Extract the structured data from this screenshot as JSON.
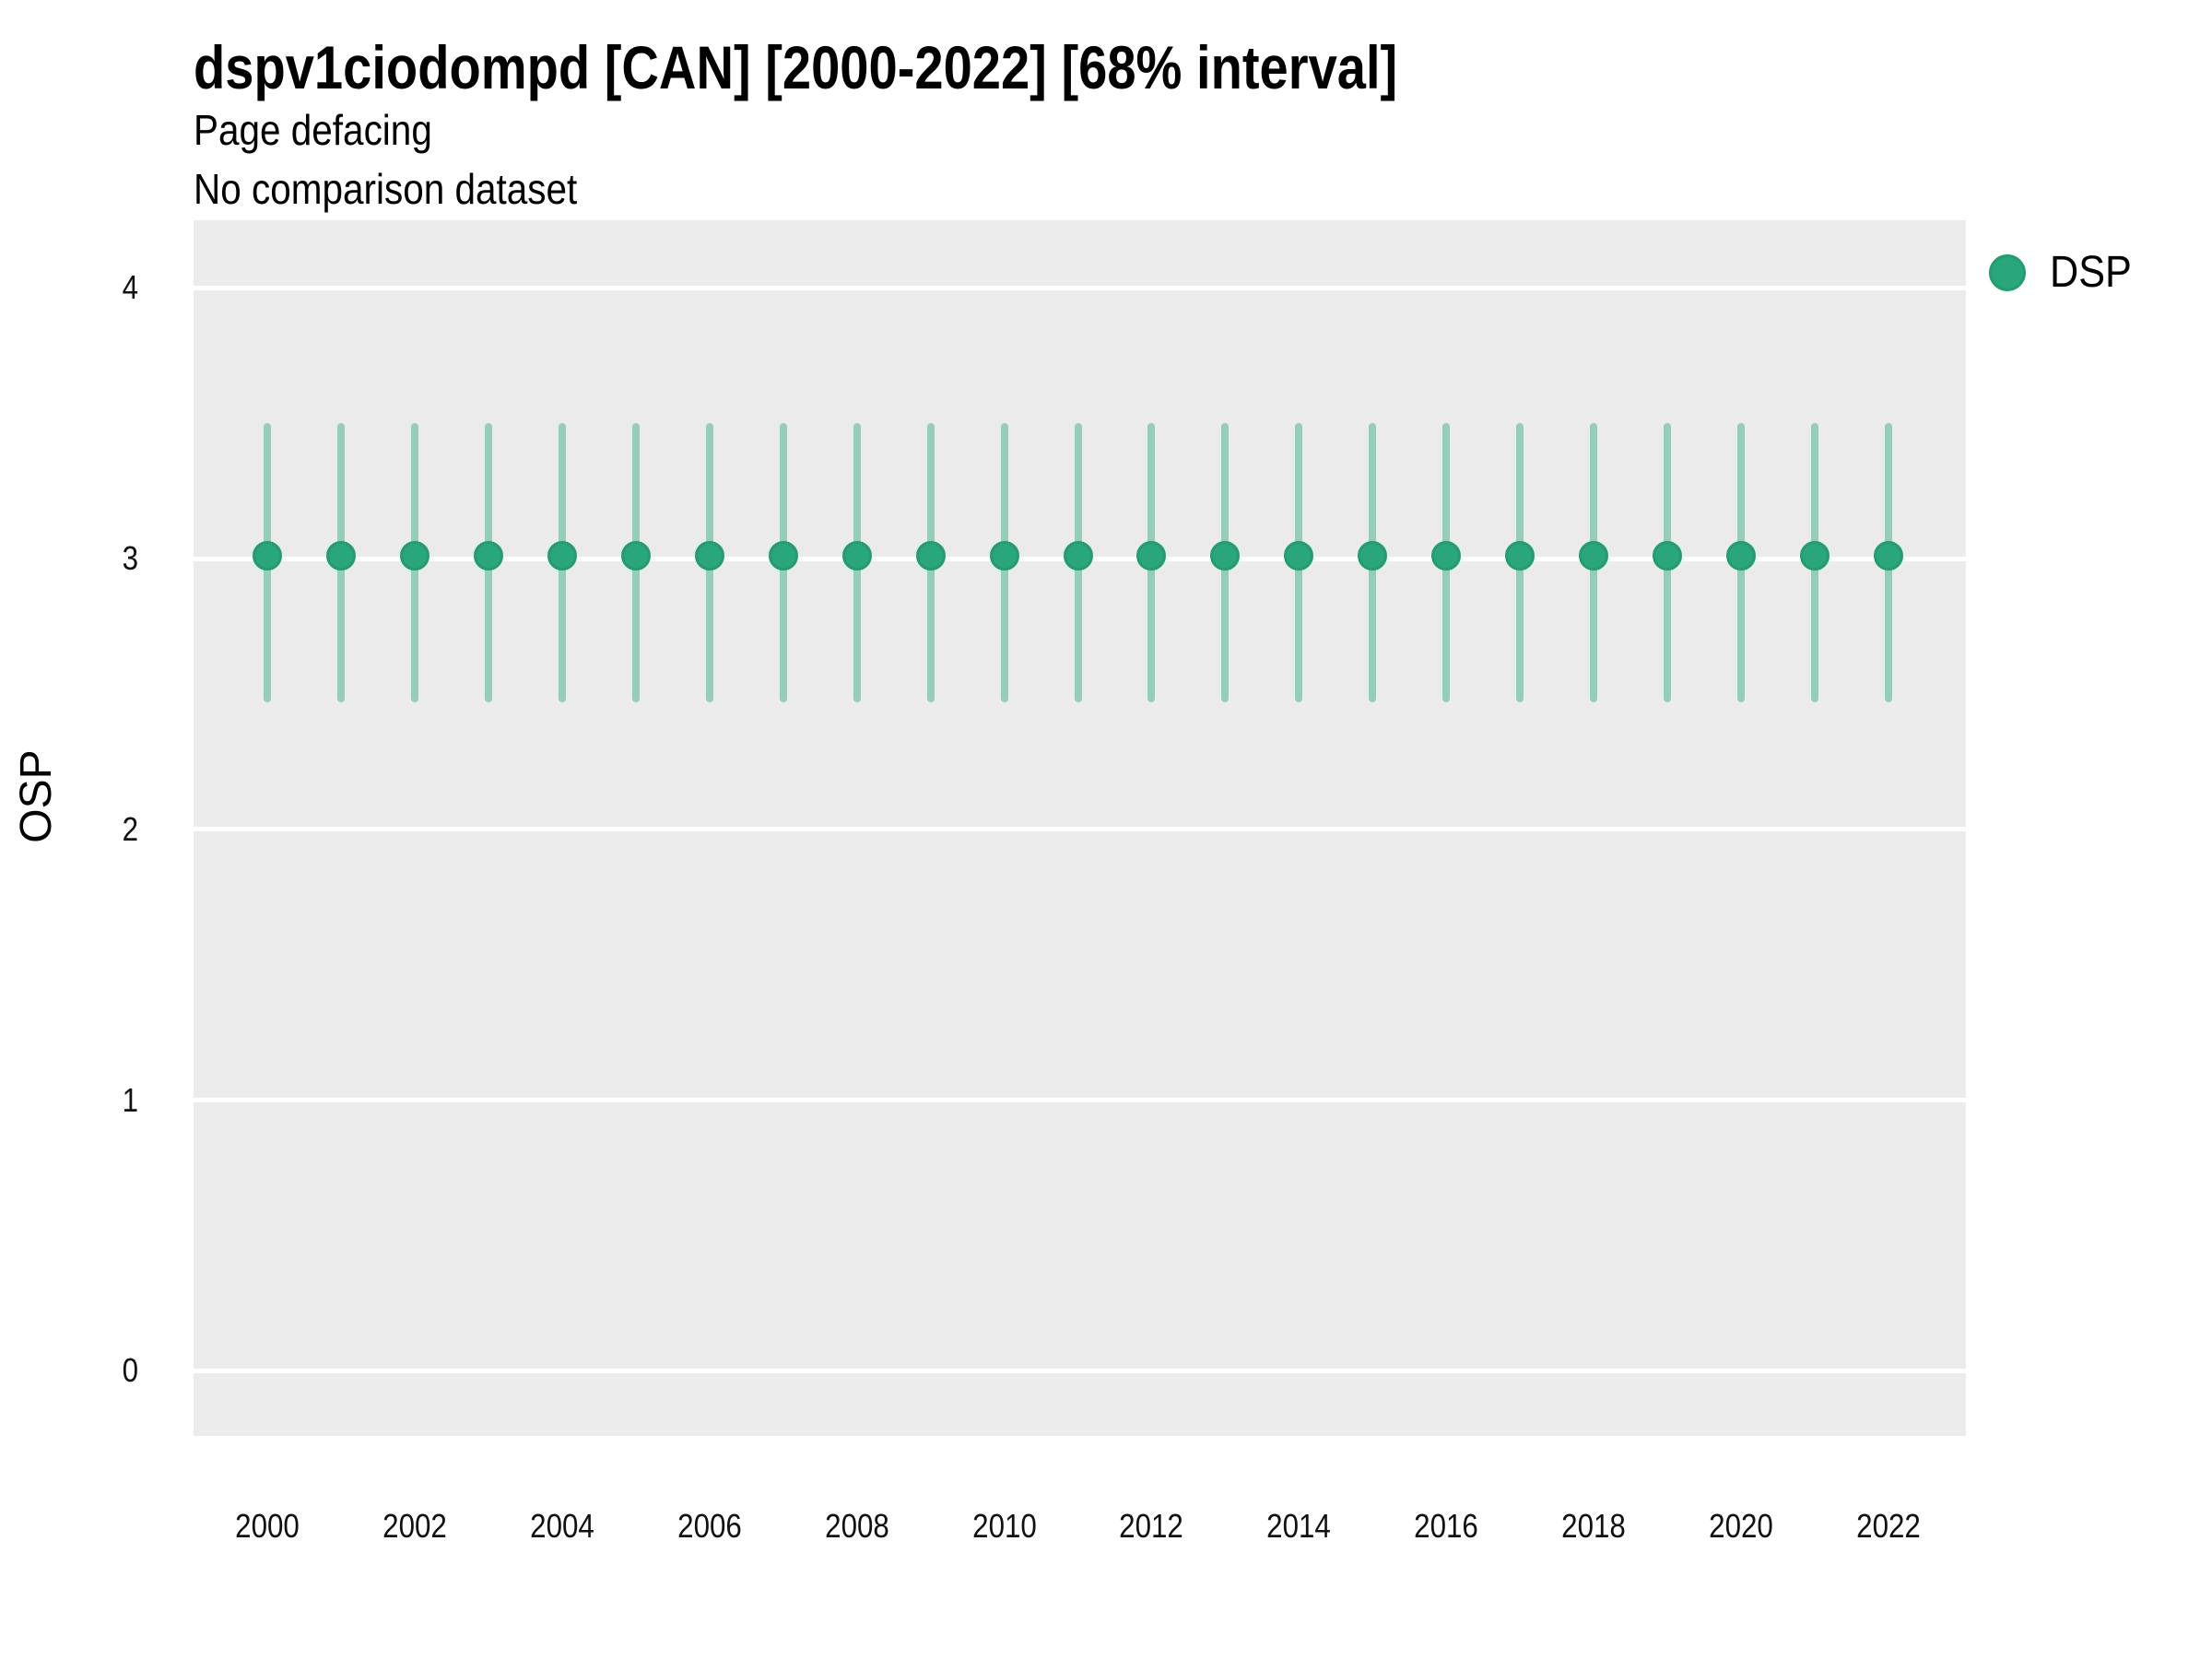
{
  "header": {
    "title": "dspv1ciodompd [CAN] [2000-2022] [68% interval]",
    "subtitle": "Page defacing",
    "note": "No comparison dataset"
  },
  "legend": {
    "items": [
      {
        "label": "DSP",
        "color": "#29A67C",
        "rim": "#209E6E"
      }
    ],
    "position": "right-top"
  },
  "colors": {
    "panel_bg": "#EBEBEB",
    "gridline": "#FFFFFF",
    "point_fill": "#29A67C",
    "point_rim": "#209E6E",
    "interval_bar": "#93CFB8",
    "text": "#000000"
  },
  "chart_data": {
    "type": "pointrange",
    "title": "dspv1ciodompd [CAN] [2000-2022] [68% interval]",
    "subtitle": "Page defacing",
    "note": "No comparison dataset",
    "xlabel": "",
    "ylabel": "OSP",
    "interval_label": "68% interval",
    "grid": "major-horizontal-only",
    "legend_position": "right",
    "x_domain": [
      1999.0,
      2023.05
    ],
    "y_domain": [
      -0.24,
      4.25
    ],
    "x_ticks": [
      2000,
      2002,
      2004,
      2006,
      2008,
      2010,
      2012,
      2014,
      2016,
      2018,
      2020,
      2022
    ],
    "y_ticks": [
      0,
      1,
      2,
      3,
      4
    ],
    "series": [
      {
        "name": "DSP",
        "color": "#29A67C",
        "bar_color": "#93CFB8",
        "x": [
          2000,
          2001,
          2002,
          2003,
          2004,
          2005,
          2006,
          2007,
          2008,
          2009,
          2010,
          2011,
          2012,
          2013,
          2014,
          2015,
          2016,
          2017,
          2018,
          2019,
          2020,
          2021,
          2022
        ],
        "y": [
          3.01,
          3.01,
          3.01,
          3.01,
          3.01,
          3.01,
          3.01,
          3.01,
          3.01,
          3.01,
          3.01,
          3.01,
          3.01,
          3.01,
          3.01,
          3.01,
          3.01,
          3.01,
          3.01,
          3.01,
          3.01,
          3.01,
          3.01
        ],
        "y_lo": [
          2.47,
          2.47,
          2.47,
          2.47,
          2.47,
          2.47,
          2.47,
          2.47,
          2.47,
          2.47,
          2.47,
          2.47,
          2.47,
          2.47,
          2.47,
          2.47,
          2.47,
          2.47,
          2.47,
          2.47,
          2.47,
          2.47,
          2.47
        ],
        "y_hi": [
          3.5,
          3.5,
          3.5,
          3.5,
          3.5,
          3.5,
          3.5,
          3.5,
          3.5,
          3.5,
          3.5,
          3.5,
          3.5,
          3.5,
          3.5,
          3.5,
          3.5,
          3.5,
          3.5,
          3.5,
          3.5,
          3.5,
          3.5
        ]
      }
    ]
  }
}
